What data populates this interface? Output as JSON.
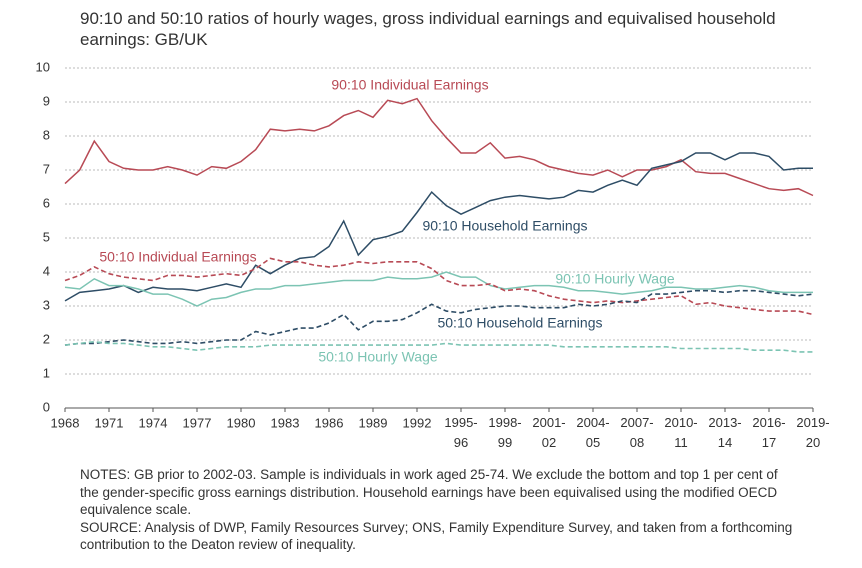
{
  "chart_data": {
    "type": "line",
    "title": "90:10 and 50:10 ratios of hourly wages, gross individual earnings and equivalised household earnings: GB/UK",
    "categories": [
      "1968",
      null,
      null,
      "1971",
      null,
      null,
      "1974",
      null,
      null,
      "1977",
      null,
      null,
      "1980",
      null,
      null,
      "1983",
      null,
      null,
      "1986",
      null,
      null,
      "1989",
      null,
      null,
      "1992",
      null,
      null,
      "1995-96",
      null,
      null,
      "1998-99",
      null,
      null,
      "2001-02",
      null,
      null,
      "2004-05",
      null,
      null,
      "2007-08",
      null,
      null,
      "2010-11",
      null,
      null,
      "2013-14",
      null,
      null,
      "2016-17",
      null,
      null,
      "2019-20"
    ],
    "ylim": [
      0,
      10
    ],
    "yticks": [
      0,
      1,
      2,
      3,
      4,
      5,
      6,
      7,
      8,
      9,
      10
    ],
    "grid": true,
    "series": [
      {
        "name": "90:10 Individual Earnings",
        "color": "#b84a55",
        "dashed": false,
        "values": [
          6.6,
          7.0,
          7.85,
          7.25,
          7.05,
          7.0,
          7.0,
          7.1,
          7.0,
          6.85,
          7.1,
          7.05,
          7.25,
          7.6,
          8.2,
          8.15,
          8.2,
          8.15,
          8.3,
          8.6,
          8.75,
          8.55,
          9.05,
          8.95,
          9.1,
          8.45,
          7.95,
          7.5,
          7.5,
          7.8,
          7.35,
          7.4,
          7.3,
          7.1,
          7.0,
          6.9,
          6.85,
          7.0,
          6.8,
          7.0,
          7.0,
          7.1,
          7.3,
          6.95,
          6.9,
          6.9,
          6.75,
          6.6,
          6.45,
          6.4,
          6.45,
          6.25
        ]
      },
      {
        "name": "90:10 Household Earnings",
        "color": "#2e4d66",
        "dashed": false,
        "values": [
          3.15,
          3.4,
          3.45,
          3.5,
          3.6,
          3.4,
          3.55,
          3.5,
          3.5,
          3.45,
          3.55,
          3.65,
          3.55,
          4.2,
          3.95,
          4.2,
          4.4,
          4.45,
          4.75,
          5.5,
          4.5,
          4.95,
          5.05,
          5.2,
          5.75,
          6.35,
          5.95,
          5.7,
          5.9,
          6.1,
          6.2,
          6.25,
          6.2,
          6.15,
          6.2,
          6.4,
          6.35,
          6.55,
          6.7,
          6.55,
          7.05,
          7.15,
          7.25,
          7.5,
          7.5,
          7.3,
          7.5,
          7.5,
          7.4,
          7.0,
          7.05,
          7.05
        ]
      },
      {
        "name": "90:10 Hourly Wage",
        "color": "#7cc4b3",
        "dashed": false,
        "values": [
          3.55,
          3.5,
          3.8,
          3.6,
          3.6,
          3.5,
          3.35,
          3.35,
          3.2,
          3.0,
          3.2,
          3.25,
          3.4,
          3.5,
          3.5,
          3.6,
          3.6,
          3.65,
          3.7,
          3.75,
          3.75,
          3.75,
          3.85,
          3.8,
          3.8,
          3.85,
          4.0,
          3.85,
          3.85,
          3.6,
          3.5,
          3.55,
          3.6,
          3.6,
          3.55,
          3.45,
          3.45,
          3.4,
          3.35,
          3.4,
          3.45,
          3.55,
          3.55,
          3.5,
          3.5,
          3.55,
          3.6,
          3.55,
          3.45,
          3.4,
          3.4,
          3.4
        ]
      },
      {
        "name": "50:10 Individual Earnings",
        "color": "#b84a55",
        "dashed": true,
        "values": [
          3.75,
          3.9,
          4.15,
          3.95,
          3.85,
          3.8,
          3.75,
          3.9,
          3.9,
          3.85,
          3.9,
          3.95,
          3.9,
          4.1,
          4.4,
          4.3,
          4.3,
          4.2,
          4.15,
          4.2,
          4.3,
          4.25,
          4.3,
          4.3,
          4.3,
          4.1,
          3.75,
          3.6,
          3.6,
          3.65,
          3.45,
          3.5,
          3.45,
          3.3,
          3.2,
          3.15,
          3.1,
          3.15,
          3.1,
          3.15,
          3.2,
          3.25,
          3.3,
          3.05,
          3.1,
          3.0,
          2.95,
          2.9,
          2.85,
          2.85,
          2.85,
          2.75
        ]
      },
      {
        "name": "50:10 Household Earnings",
        "color": "#2e4d66",
        "dashed": true,
        "values": [
          1.85,
          1.9,
          1.9,
          1.95,
          2.0,
          1.95,
          1.9,
          1.9,
          1.95,
          1.9,
          1.95,
          2.0,
          2.0,
          2.25,
          2.15,
          2.25,
          2.35,
          2.35,
          2.5,
          2.75,
          2.3,
          2.55,
          2.55,
          2.6,
          2.8,
          3.05,
          2.85,
          2.8,
          2.9,
          2.95,
          3.0,
          3.0,
          2.95,
          2.95,
          2.95,
          3.05,
          3.0,
          3.05,
          3.15,
          3.1,
          3.35,
          3.35,
          3.4,
          3.45,
          3.45,
          3.4,
          3.45,
          3.45,
          3.4,
          3.35,
          3.3,
          3.35
        ]
      },
      {
        "name": "50:10 Hourly Wage",
        "color": "#7cc4b3",
        "dashed": true,
        "values": [
          1.85,
          1.9,
          1.95,
          1.9,
          1.9,
          1.85,
          1.8,
          1.8,
          1.75,
          1.7,
          1.75,
          1.8,
          1.8,
          1.8,
          1.85,
          1.85,
          1.85,
          1.85,
          1.85,
          1.85,
          1.85,
          1.85,
          1.85,
          1.85,
          1.85,
          1.85,
          1.9,
          1.85,
          1.85,
          1.85,
          1.85,
          1.85,
          1.85,
          1.85,
          1.8,
          1.8,
          1.8,
          1.8,
          1.8,
          1.8,
          1.8,
          1.8,
          1.75,
          1.75,
          1.75,
          1.75,
          1.75,
          1.7,
          1.7,
          1.7,
          1.65,
          1.65
        ]
      }
    ],
    "notes": "NOTES: GB prior to 2002-03. Sample is individuals in work aged 25-74. We exclude the bottom and top 1 per cent of the gender-specific gross earnings distribution. Household earnings have been equivalised using the modified OECD equivalence scale.",
    "source": "SOURCE: Analysis of DWP, Family Resources Survey; ONS, Family Expenditure Survey, and taken from a forthcoming contribution to the Deaton review of inequality."
  }
}
